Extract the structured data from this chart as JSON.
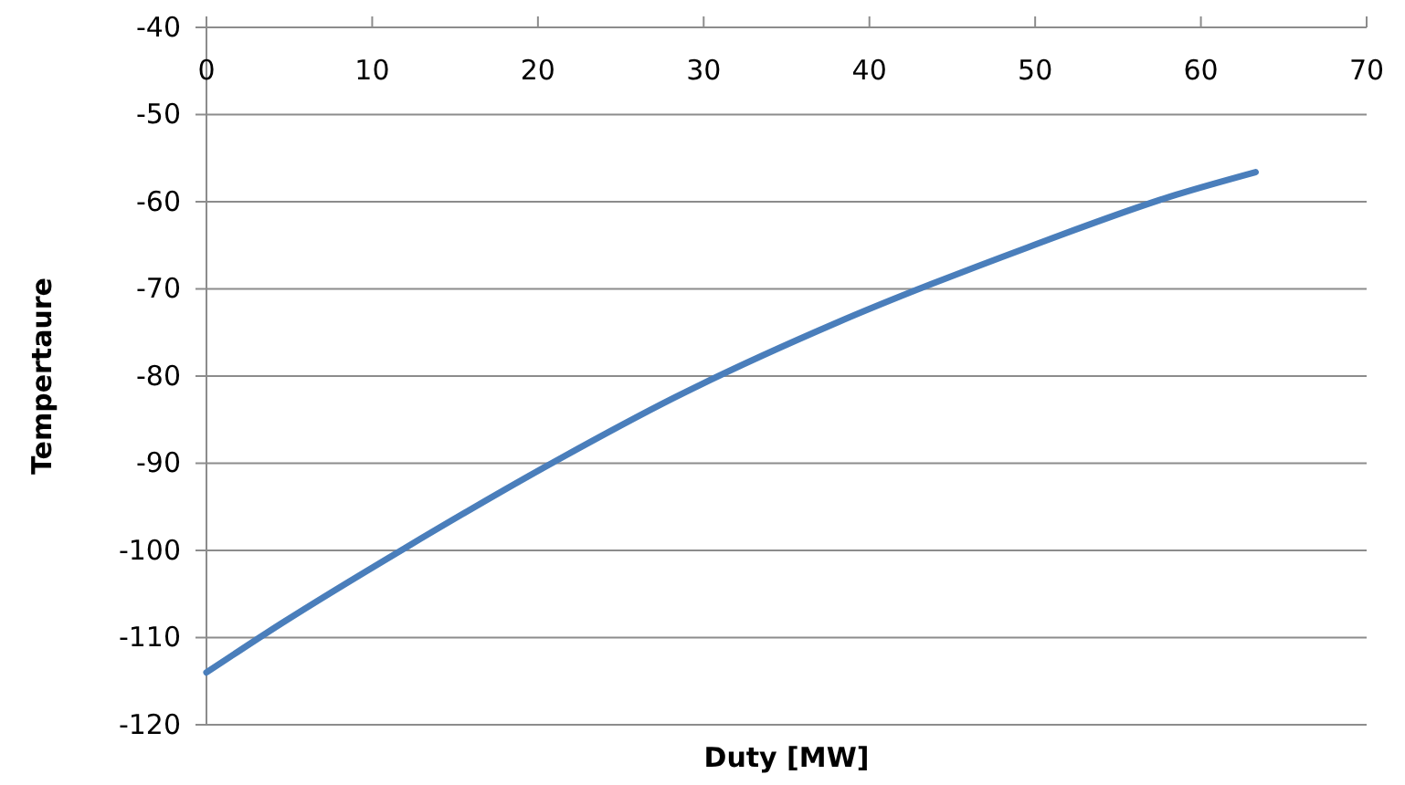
{
  "chart_data": {
    "type": "line",
    "xlabel": "Duty [MW]",
    "ylabel": "Tempertaure",
    "x": [
      0,
      4.5,
      12,
      21.3,
      28.2,
      38,
      49.6,
      58.5,
      63.3
    ],
    "series": [
      {
        "color": "#4a7ebb",
        "values": [
          -114,
          -108.4,
          -99.7,
          -89.5,
          -82.5,
          -73.9,
          -65.2,
          -59.2,
          -56.6
        ]
      }
    ],
    "xlim": [
      0,
      70
    ],
    "xticks": [
      0,
      10,
      20,
      30,
      40,
      50,
      60,
      70
    ],
    "ylim": [
      -120,
      -40
    ],
    "yticks": [
      -120,
      -110,
      -100,
      -90,
      -80,
      -70,
      -60,
      -50,
      -40
    ],
    "grid": "y",
    "marker": "none",
    "line_style": "solid"
  }
}
